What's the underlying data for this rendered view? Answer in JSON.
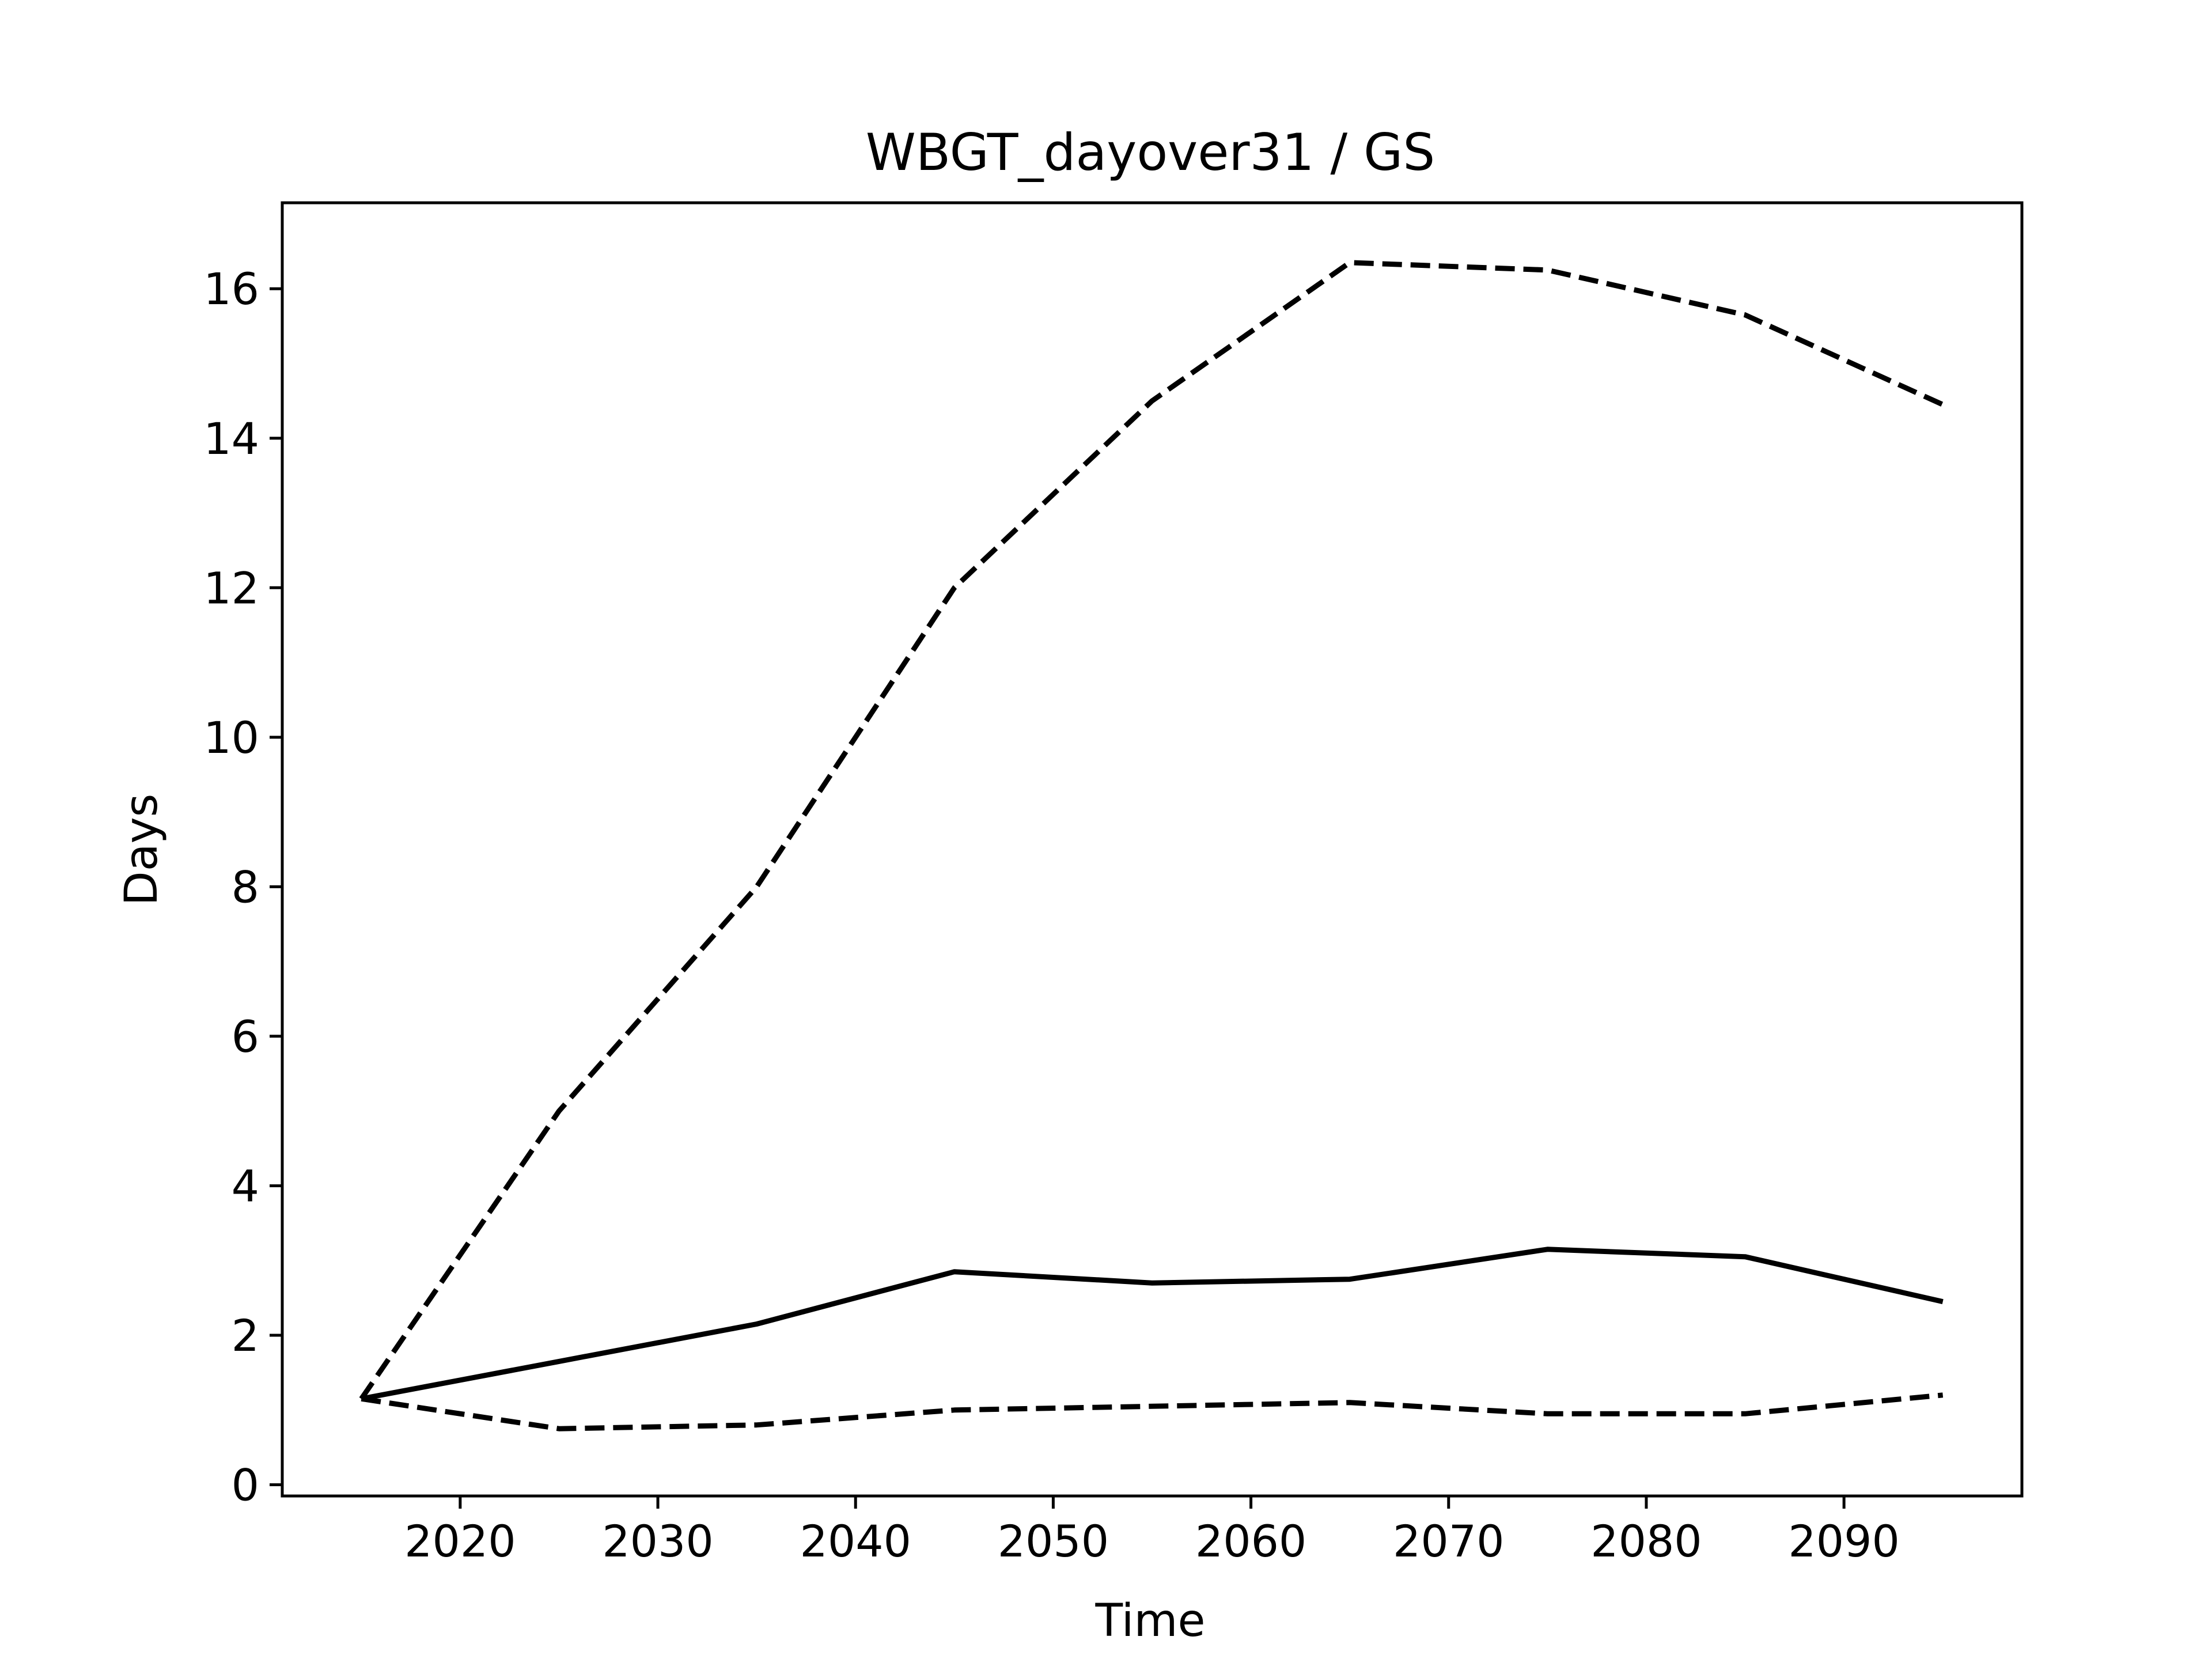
{
  "chart_data": {
    "type": "line",
    "title": "WBGT_dayover31 / GS",
    "xlabel": "Time",
    "ylabel": "Days",
    "xlim": [
      2011,
      2099
    ],
    "ylim": [
      -0.15,
      17.15
    ],
    "x_ticks": [
      2020,
      2030,
      2040,
      2050,
      2060,
      2070,
      2080,
      2090
    ],
    "y_ticks": [
      0,
      2,
      4,
      6,
      8,
      10,
      12,
      14,
      16
    ],
    "grid": false,
    "legend": "none",
    "x": [
      2015,
      2025,
      2035,
      2045,
      2055,
      2065,
      2075,
      2085,
      2095
    ],
    "series": [
      {
        "style": "dashed",
        "color": "#000000",
        "values": [
          1.15,
          5.0,
          8.0,
          12.0,
          14.5,
          16.35,
          16.25,
          15.65,
          14.45
        ]
      },
      {
        "style": "solid",
        "color": "#000000",
        "values": [
          1.15,
          1.65,
          2.15,
          2.85,
          2.7,
          2.75,
          3.15,
          3.05,
          2.45
        ]
      },
      {
        "style": "dashed",
        "color": "#000000",
        "values": [
          1.15,
          0.75,
          0.8,
          1.0,
          1.05,
          1.1,
          0.95,
          0.95,
          1.2
        ]
      }
    ]
  }
}
